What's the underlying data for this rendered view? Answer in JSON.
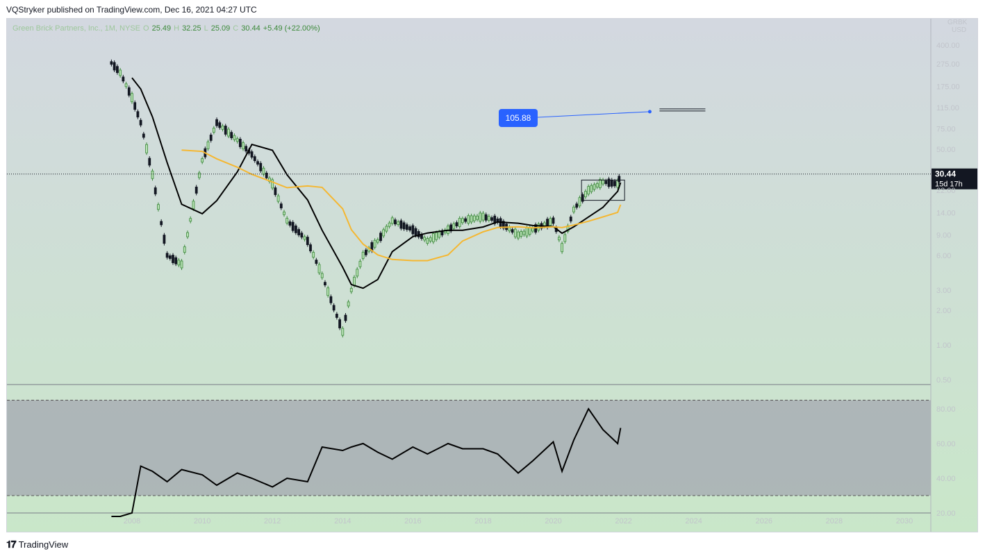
{
  "header": {
    "publisher_line": "VQStryker published on TradingView.com, Dec 16, 2021 04:27 UTC"
  },
  "footer": {
    "brand": "TradingView",
    "logo_glyph": "𝟏𝟕"
  },
  "legend": {
    "symbol": "Green Brick Partners, Inc., 1M, NYSE",
    "open_label": "O",
    "open": "25.49",
    "high_label": "H",
    "high": "32.25",
    "low_label": "L",
    "low": "25.09",
    "close_label": "C",
    "close": "30.44",
    "change": "+5.49 (+22.00%)"
  },
  "price_axis": {
    "currency_top": "GRBK",
    "currency": "USD",
    "ticks": [
      "400.00",
      "275.00",
      "175.00",
      "115.00",
      "75.00",
      "50.00",
      "22.00",
      "14.00",
      "9.00",
      "6.00",
      "3.00",
      "2.00",
      "1.00",
      "0.50"
    ],
    "last_price": "30.44",
    "countdown": "15d 17h"
  },
  "rsi_axis": {
    "ticks": [
      "80.00",
      "60.00",
      "40.00",
      "20.00"
    ]
  },
  "time_axis": {
    "ticks": [
      "2008",
      "2010",
      "2012",
      "2014",
      "2016",
      "2018",
      "2020",
      "2022",
      "2024",
      "2026",
      "2028",
      "2030"
    ]
  },
  "annotation": {
    "target_label": "105.88"
  },
  "colors": {
    "up": "#3c8a3a",
    "down": "#131722",
    "ma_fast": "#000000",
    "ma_slow": "#f5b731",
    "label_bg": "#2962ff",
    "bg_top": "#d3d8e0",
    "bg_bottom": "#c9e7c9",
    "rsi_band": "#a8aeb4"
  },
  "chart_data": {
    "type": "line",
    "title": "",
    "x": [
      "2007-06",
      "2007-09",
      "2008-01",
      "2008-04",
      "2008-08",
      "2009-01",
      "2009-06",
      "2010-01",
      "2010-06",
      "2011-01",
      "2011-06",
      "2012-01",
      "2012-06",
      "2013-01",
      "2013-06",
      "2014-01",
      "2014-04",
      "2014-08",
      "2015-01",
      "2015-06",
      "2016-01",
      "2016-06",
      "2017-01",
      "2017-06",
      "2018-01",
      "2018-06",
      "2019-01",
      "2019-06",
      "2020-01",
      "2020-04",
      "2020-08",
      "2021-01",
      "2021-06",
      "2021-11",
      "2021-12"
    ],
    "series": [
      {
        "name": "",
        "values": [
          280,
          230,
          140,
          85,
          30,
          6,
          5,
          40,
          85,
          60,
          45,
          25,
          12,
          8,
          4,
          1.3,
          3,
          6,
          8,
          12,
          10,
          8,
          10,
          12,
          13,
          12,
          9,
          10,
          12,
          7,
          15,
          22,
          26,
          25,
          30.44
        ]
      }
    ],
    "rsi_values": [
      18,
      18,
      20,
      47,
      44,
      38,
      45,
      42,
      36,
      43,
      40,
      35,
      40,
      38,
      58,
      56,
      58,
      60,
      55,
      51,
      58,
      54,
      60,
      57,
      57,
      54,
      43,
      50,
      61,
      44,
      62,
      80,
      68,
      60,
      69
    ],
    "ylim": [
      0.5,
      400
    ],
    "yscale": "log",
    "rsi_ylim": [
      15,
      85
    ],
    "rsi_band": [
      30,
      85
    ]
  }
}
